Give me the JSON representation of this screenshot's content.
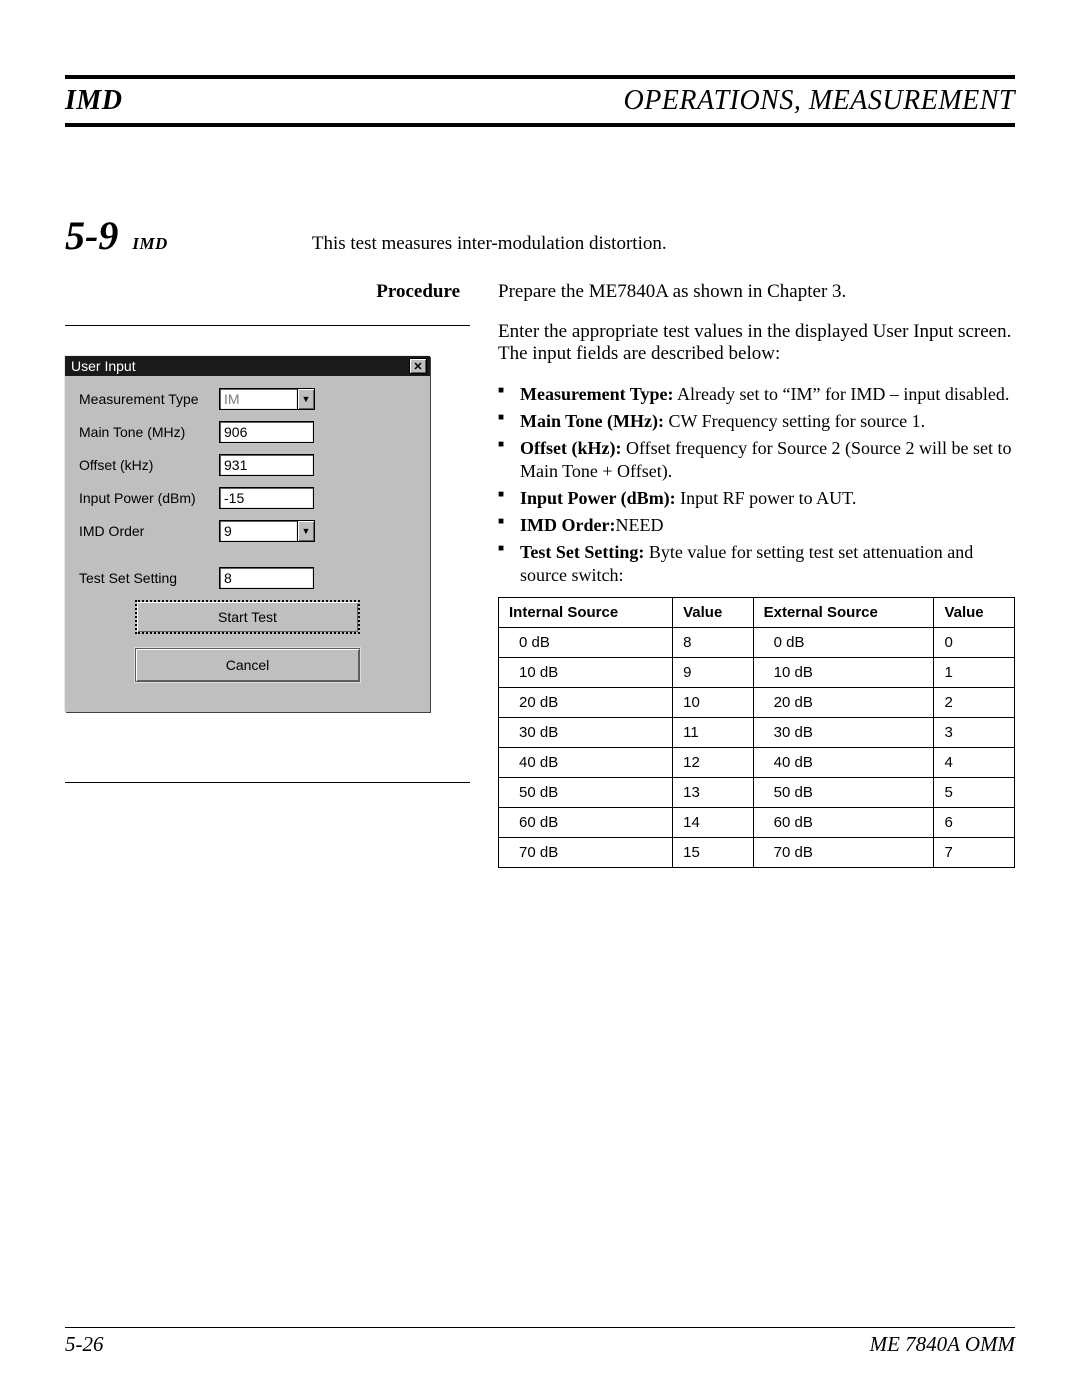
{
  "header": {
    "left": "IMD",
    "right": "OPERATIONS, MEASUREMENT"
  },
  "section": {
    "number": "5-9",
    "code": "IMD",
    "intro": "This test measures inter-modulation distortion."
  },
  "procedure": {
    "label": "Procedure",
    "p1": "Prepare the ME7840A as shown in Chapter 3.",
    "p2": "Enter the appropriate test values in the displayed User Input screen. The input fields are described below:"
  },
  "bullets": {
    "b1_label": "Measurement Type:",
    "b1_text": " Already set to “IM” for IMD – input disabled.",
    "b2_label": "Main Tone (MHz):",
    "b2_text": " CW Frequency setting for source 1.",
    "b3_label": "Offset (kHz):",
    "b3_text": " Offset frequency for Source 2 (Source 2 will be set to Main Tone + Offset).",
    "b4_label": "Input Power (dBm):",
    "b4_text": " Input RF power to AUT.",
    "b5_label": "IMD Order:",
    "b5_text": "NEED",
    "b6_label": "Test Set Setting:",
    "b6_text": " Byte value for setting test set attenuation and source switch:"
  },
  "dialog": {
    "title": "User Input",
    "fields": {
      "measurement_type_label": "Measurement Type",
      "measurement_type_value": "IM",
      "main_tone_label": "Main Tone (MHz)",
      "main_tone_value": "906",
      "offset_label": "Offset (kHz)",
      "offset_value": "931",
      "input_power_label": "Input Power (dBm)",
      "input_power_value": "-15",
      "imd_order_label": "IMD Order",
      "imd_order_value": "9",
      "test_set_label": "Test Set Setting",
      "test_set_value": "8"
    },
    "buttons": {
      "start": "Start Test",
      "cancel": "Cancel"
    }
  },
  "table": {
    "headers": {
      "h1": "Internal Source",
      "h2": "Value",
      "h3": "External Source",
      "h4": "Value"
    },
    "rows": [
      {
        "c1": "0 dB",
        "c2": "8",
        "c3": "0 dB",
        "c4": "0"
      },
      {
        "c1": "10 dB",
        "c2": "9",
        "c3": "10 dB",
        "c4": "1"
      },
      {
        "c1": "20 dB",
        "c2": "10",
        "c3": "20 dB",
        "c4": "2"
      },
      {
        "c1": "30 dB",
        "c2": "11",
        "c3": "30 dB",
        "c4": "3"
      },
      {
        "c1": "40 dB",
        "c2": "12",
        "c3": "40 dB",
        "c4": "4"
      },
      {
        "c1": "50 dB",
        "c2": "13",
        "c3": "50 dB",
        "c4": "5"
      },
      {
        "c1": "60 dB",
        "c2": "14",
        "c3": "60 dB",
        "c4": "6"
      },
      {
        "c1": "70 dB",
        "c2": "15",
        "c3": "70 dB",
        "c4": "7"
      }
    ]
  },
  "footer": {
    "left": "5-26",
    "right": "ME 7840A OMM"
  }
}
